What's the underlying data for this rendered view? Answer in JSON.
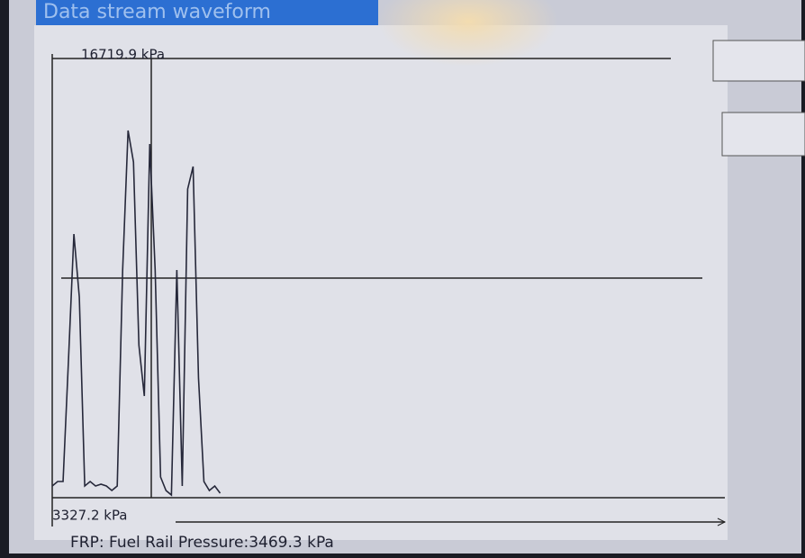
{
  "chart_data": {
    "type": "line",
    "title": "Data stream waveform",
    "caption": "FRP: Fuel Rail Pressure:3469.3 kPa",
    "ylim": [
      3327.2,
      16719.9
    ],
    "yticks": [
      {
        "value": 3327.2,
        "label": "3327.2 kPa"
      },
      {
        "value": 16719.9,
        "label": "16719.9 kPa"
      }
    ],
    "color": "#26283a",
    "categories": [
      null,
      null,
      null,
      null,
      null,
      null,
      null,
      null,
      null,
      null,
      null,
      null,
      null,
      null,
      null,
      null,
      null,
      null,
      null,
      null,
      null,
      null,
      null,
      null,
      null,
      null,
      null,
      null,
      null,
      null,
      null,
      null,
      null,
      null,
      null,
      null,
      null,
      null,
      null,
      null,
      null,
      null,
      null,
      null,
      null,
      null,
      null,
      null,
      null,
      null,
      null,
      null,
      null,
      null,
      null,
      null,
      null,
      null,
      null,
      null,
      null,
      null,
      null,
      null,
      null,
      null,
      null,
      null,
      null,
      null,
      null,
      null,
      null,
      null,
      null,
      null,
      null,
      null,
      null,
      null,
      null,
      null,
      null,
      null,
      null,
      null,
      null,
      null,
      null,
      null,
      null,
      null,
      null,
      null,
      null,
      null,
      null,
      null,
      null,
      null,
      null,
      null,
      null,
      null,
      null,
      null,
      null,
      null,
      null,
      null,
      null,
      null,
      null,
      null,
      null,
      null,
      null,
      null,
      null,
      null
    ],
    "values": [
      3684,
      3821,
      3821,
      7526,
      11368,
      9446,
      3684,
      3821,
      3684,
      3739,
      3684,
      3547,
      3684,
      10270,
      14523,
      13562,
      7976,
      6428,
      14111,
      10270,
      3958,
      3547,
      3409,
      10270,
      3684,
      12739,
      13425,
      6976,
      3821,
      3547,
      3684,
      3464,
      null,
      null,
      null,
      null,
      null,
      null,
      null,
      null,
      null,
      null,
      null,
      null,
      null,
      null,
      null,
      null,
      null,
      null,
      null,
      null,
      null,
      null,
      null,
      null,
      null,
      null,
      null,
      null,
      null,
      null,
      null,
      null,
      null,
      null,
      null,
      null,
      null,
      null,
      null,
      null,
      null,
      null,
      null,
      null,
      null,
      null,
      null,
      null,
      null,
      null,
      null,
      null,
      null,
      null,
      null,
      null,
      null,
      null,
      null,
      null,
      null,
      null,
      null,
      null,
      null,
      null,
      null,
      null,
      null,
      null,
      null,
      null,
      null,
      null,
      null,
      null,
      null,
      null,
      null,
      null,
      null,
      null,
      null,
      null,
      null,
      null,
      null,
      null
    ]
  }
}
